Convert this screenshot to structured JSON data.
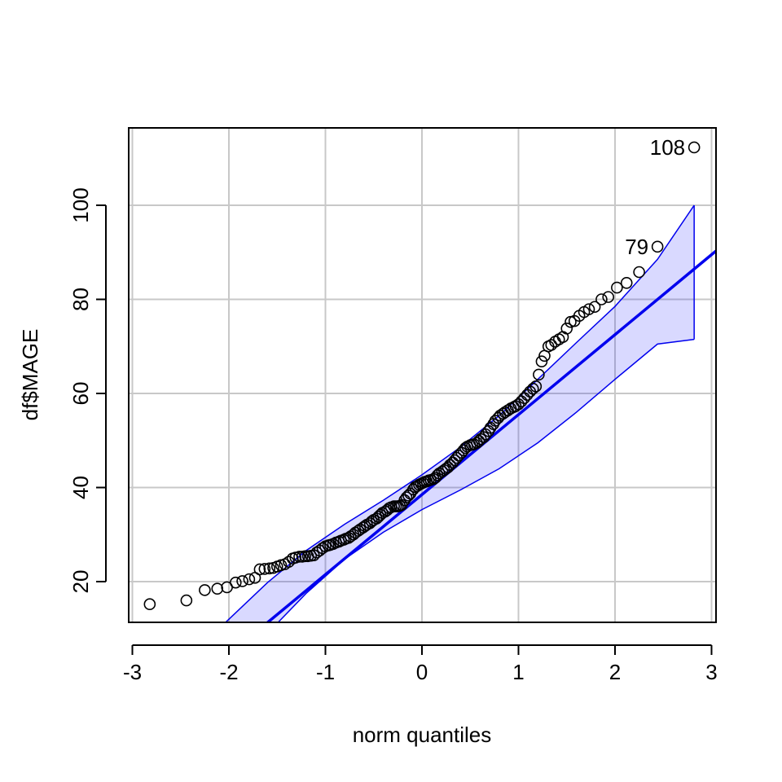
{
  "chart_data": {
    "type": "scatter",
    "subtype": "qq-plot",
    "title": "",
    "xlabel": "norm quantiles",
    "ylabel": "df$MAGE",
    "xlim": [
      -3.05,
      3.05
    ],
    "ylim": [
      11.5,
      116
    ],
    "xticks": [
      -3,
      -2,
      -1,
      0,
      1,
      2,
      3
    ],
    "yticks": [
      20,
      40,
      60,
      80,
      100
    ],
    "grid": true,
    "colors": {
      "points": "#000000",
      "line": "#0000ee",
      "band_fill": "#0000ff",
      "band_stroke": "#0000ee",
      "grid": "#c8c8c8"
    },
    "reference_line": {
      "intercept": 38.5,
      "slope": 17.0
    },
    "envelope": {
      "x": [
        -2.82,
        -2.44,
        -2.0,
        -1.6,
        -1.2,
        -0.8,
        -0.4,
        0.0,
        0.4,
        0.8,
        1.2,
        1.6,
        2.0,
        2.44,
        2.82
      ],
      "upper": [
        -2.4,
        3.5,
        12.0,
        19.8,
        26.6,
        32.2,
        37.3,
        42.7,
        48.6,
        55.3,
        63.0,
        70.8,
        78.5,
        88.5,
        100.0
      ],
      "lower": [
        -22.5,
        -13.0,
        -1.5,
        9.0,
        17.5,
        24.8,
        30.5,
        35.3,
        39.5,
        44.0,
        49.5,
        56.0,
        63.0,
        70.5,
        71.5
      ]
    },
    "points": [
      [
        -2.82,
        15.2
      ],
      [
        -2.44,
        16.0
      ],
      [
        -2.25,
        18.2
      ],
      [
        -2.12,
        18.5
      ],
      [
        -2.02,
        18.8
      ],
      [
        -1.93,
        19.8
      ],
      [
        -1.86,
        20.1
      ],
      [
        -1.79,
        20.5
      ],
      [
        -1.73,
        20.8
      ],
      [
        -1.68,
        22.6
      ],
      [
        -1.63,
        22.7
      ],
      [
        -1.58,
        22.8
      ],
      [
        -1.54,
        22.9
      ],
      [
        -1.5,
        23.2
      ],
      [
        -1.46,
        23.5
      ],
      [
        -1.42,
        23.7
      ],
      [
        -1.38,
        24.2
      ],
      [
        -1.34,
        24.9
      ],
      [
        -1.31,
        25.1
      ],
      [
        -1.27,
        25.3
      ],
      [
        -1.24,
        25.3
      ],
      [
        -1.21,
        25.4
      ],
      [
        -1.18,
        25.4
      ],
      [
        -1.15,
        25.5
      ],
      [
        -1.12,
        25.6
      ],
      [
        -1.09,
        26.2
      ],
      [
        -1.06,
        26.6
      ],
      [
        -1.03,
        27.1
      ],
      [
        -1.0,
        27.5
      ],
      [
        -0.97,
        27.7
      ],
      [
        -0.95,
        27.8
      ],
      [
        -0.92,
        28.0
      ],
      [
        -0.89,
        28.3
      ],
      [
        -0.86,
        28.5
      ],
      [
        -0.84,
        28.7
      ],
      [
        -0.81,
        28.9
      ],
      [
        -0.79,
        29.1
      ],
      [
        -0.76,
        29.3
      ],
      [
        -0.74,
        29.6
      ],
      [
        -0.71,
        30.0
      ],
      [
        -0.69,
        30.4
      ],
      [
        -0.66,
        30.8
      ],
      [
        -0.64,
        31.1
      ],
      [
        -0.61,
        31.5
      ],
      [
        -0.59,
        31.8
      ],
      [
        -0.57,
        32.1
      ],
      [
        -0.54,
        32.4
      ],
      [
        -0.52,
        32.8
      ],
      [
        -0.5,
        33.1
      ],
      [
        -0.47,
        33.4
      ],
      [
        -0.45,
        33.8
      ],
      [
        -0.43,
        34.2
      ],
      [
        -0.41,
        34.6
      ],
      [
        -0.38,
        34.9
      ],
      [
        -0.36,
        35.2
      ],
      [
        -0.34,
        35.6
      ],
      [
        -0.32,
        35.8
      ],
      [
        -0.29,
        36.0
      ],
      [
        -0.27,
        36.0
      ],
      [
        -0.25,
        36.0
      ],
      [
        -0.23,
        36.1
      ],
      [
        -0.21,
        36.3
      ],
      [
        -0.18,
        37.3
      ],
      [
        -0.16,
        37.9
      ],
      [
        -0.14,
        38.3
      ],
      [
        -0.12,
        38.7
      ],
      [
        -0.09,
        39.6
      ],
      [
        -0.07,
        40.1
      ],
      [
        -0.05,
        40.3
      ],
      [
        -0.03,
        40.6
      ],
      [
        -0.01,
        40.8
      ],
      [
        0.01,
        41.0
      ],
      [
        0.03,
        41.2
      ],
      [
        0.05,
        41.3
      ],
      [
        0.07,
        41.5
      ],
      [
        0.09,
        41.6
      ],
      [
        0.12,
        41.8
      ],
      [
        0.14,
        42.1
      ],
      [
        0.16,
        42.6
      ],
      [
        0.18,
        43.0
      ],
      [
        0.21,
        43.4
      ],
      [
        0.23,
        43.7
      ],
      [
        0.25,
        44.0
      ],
      [
        0.27,
        44.3
      ],
      [
        0.29,
        44.8
      ],
      [
        0.32,
        45.3
      ],
      [
        0.34,
        45.8
      ],
      [
        0.36,
        46.3
      ],
      [
        0.38,
        46.8
      ],
      [
        0.41,
        47.4
      ],
      [
        0.43,
        47.9
      ],
      [
        0.45,
        48.4
      ],
      [
        0.47,
        48.7
      ],
      [
        0.5,
        49.0
      ],
      [
        0.52,
        49.1
      ],
      [
        0.54,
        49.2
      ],
      [
        0.57,
        49.5
      ],
      [
        0.59,
        49.9
      ],
      [
        0.61,
        50.3
      ],
      [
        0.64,
        50.7
      ],
      [
        0.66,
        51.3
      ],
      [
        0.69,
        52.0
      ],
      [
        0.71,
        52.7
      ],
      [
        0.74,
        53.5
      ],
      [
        0.76,
        54.2
      ],
      [
        0.79,
        54.8
      ],
      [
        0.81,
        55.3
      ],
      [
        0.84,
        55.7
      ],
      [
        0.86,
        56.0
      ],
      [
        0.89,
        56.4
      ],
      [
        0.92,
        56.8
      ],
      [
        0.95,
        57.1
      ],
      [
        0.97,
        57.3
      ],
      [
        1.0,
        57.7
      ],
      [
        1.03,
        58.3
      ],
      [
        1.06,
        59.0
      ],
      [
        1.09,
        59.7
      ],
      [
        1.12,
        60.4
      ],
      [
        1.15,
        61.0
      ],
      [
        1.18,
        61.5
      ],
      [
        1.21,
        64.0
      ],
      [
        1.24,
        66.8
      ],
      [
        1.27,
        68.0
      ],
      [
        1.31,
        70.0
      ],
      [
        1.34,
        70.3
      ],
      [
        1.38,
        71.0
      ],
      [
        1.42,
        71.5
      ],
      [
        1.46,
        72.0
      ],
      [
        1.5,
        73.8
      ],
      [
        1.54,
        75.2
      ],
      [
        1.58,
        75.4
      ],
      [
        1.63,
        76.5
      ],
      [
        1.68,
        77.3
      ],
      [
        1.73,
        77.9
      ],
      [
        1.79,
        78.4
      ],
      [
        1.86,
        80.0
      ],
      [
        1.93,
        80.5
      ],
      [
        2.02,
        82.5
      ],
      [
        2.12,
        83.5
      ],
      [
        2.25,
        85.8
      ],
      [
        2.44,
        91.2
      ],
      [
        2.82,
        112.3
      ]
    ],
    "annotations": [
      {
        "label": "108",
        "x": 2.82,
        "y": 112.3
      },
      {
        "label": "79",
        "x": 2.44,
        "y": 91.2
      }
    ]
  }
}
